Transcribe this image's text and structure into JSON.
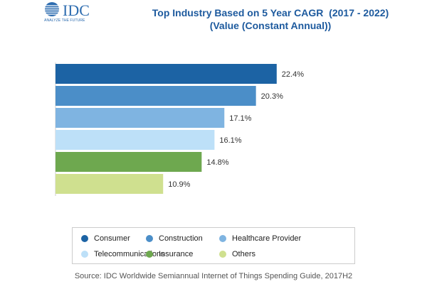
{
  "logo": {
    "brand": "IDC",
    "tagline": "ANALYZE THE FUTURE"
  },
  "title": {
    "line1": "Top Industry Based on 5 Year CAGR  (2017 - 2022)",
    "line2": "(Value (Constant Annual))"
  },
  "chart_data": {
    "type": "bar",
    "orientation": "horizontal",
    "categories": [
      "Consumer",
      "Construction",
      "Healthcare Provider",
      "Telecommunications",
      "Insurance",
      "Others"
    ],
    "values": [
      22.4,
      20.3,
      17.1,
      16.1,
      14.8,
      10.9
    ],
    "data_labels": [
      "22.4%",
      "20.3%",
      "17.1%",
      "16.1%",
      "14.8%",
      "10.9%"
    ],
    "colors": [
      "#1c63a4",
      "#4b8ec8",
      "#7fb4e1",
      "#bde0f8",
      "#6ea84f",
      "#cfe08f"
    ],
    "xlim": [
      0,
      24
    ],
    "grid": false,
    "legend": "bottom"
  },
  "source": "Source: IDC Worldwide Semiannual Internet of Things Spending Guide, 2017H2"
}
